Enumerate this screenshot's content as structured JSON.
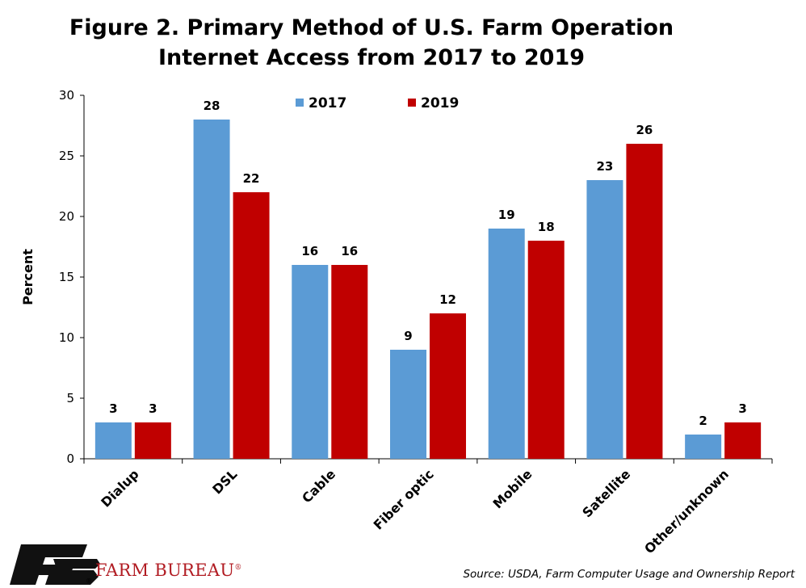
{
  "title_line1": "Figure 2. Primary Method of U.S. Farm Operation",
  "title_line2": "Internet Access from 2017 to 2019",
  "source": "Source: USDA, Farm Computer Usage and Ownership Report",
  "logo_text": "FARM BUREAU",
  "logo_mark": "®",
  "chart_data": {
    "type": "bar",
    "title": "Figure 2. Primary Method of U.S. Farm Operation Internet Access from 2017 to 2019",
    "xlabel": "",
    "ylabel": "Percent",
    "ylim": [
      0,
      30
    ],
    "yticks": [
      0,
      5,
      10,
      15,
      20,
      25,
      30
    ],
    "categories": [
      "Dialup",
      "DSL",
      "Cable",
      "Fiber optic",
      "Mobile",
      "Satellite",
      "Other/unknown"
    ],
    "series": [
      {
        "name": "2017",
        "color": "#5b9bd5",
        "values": [
          3,
          28,
          16,
          9,
          19,
          23,
          2
        ]
      },
      {
        "name": "2019",
        "color": "#c00000",
        "values": [
          3,
          22,
          16,
          12,
          18,
          26,
          3
        ]
      }
    ],
    "legend_position": "top-center",
    "grid": false
  }
}
